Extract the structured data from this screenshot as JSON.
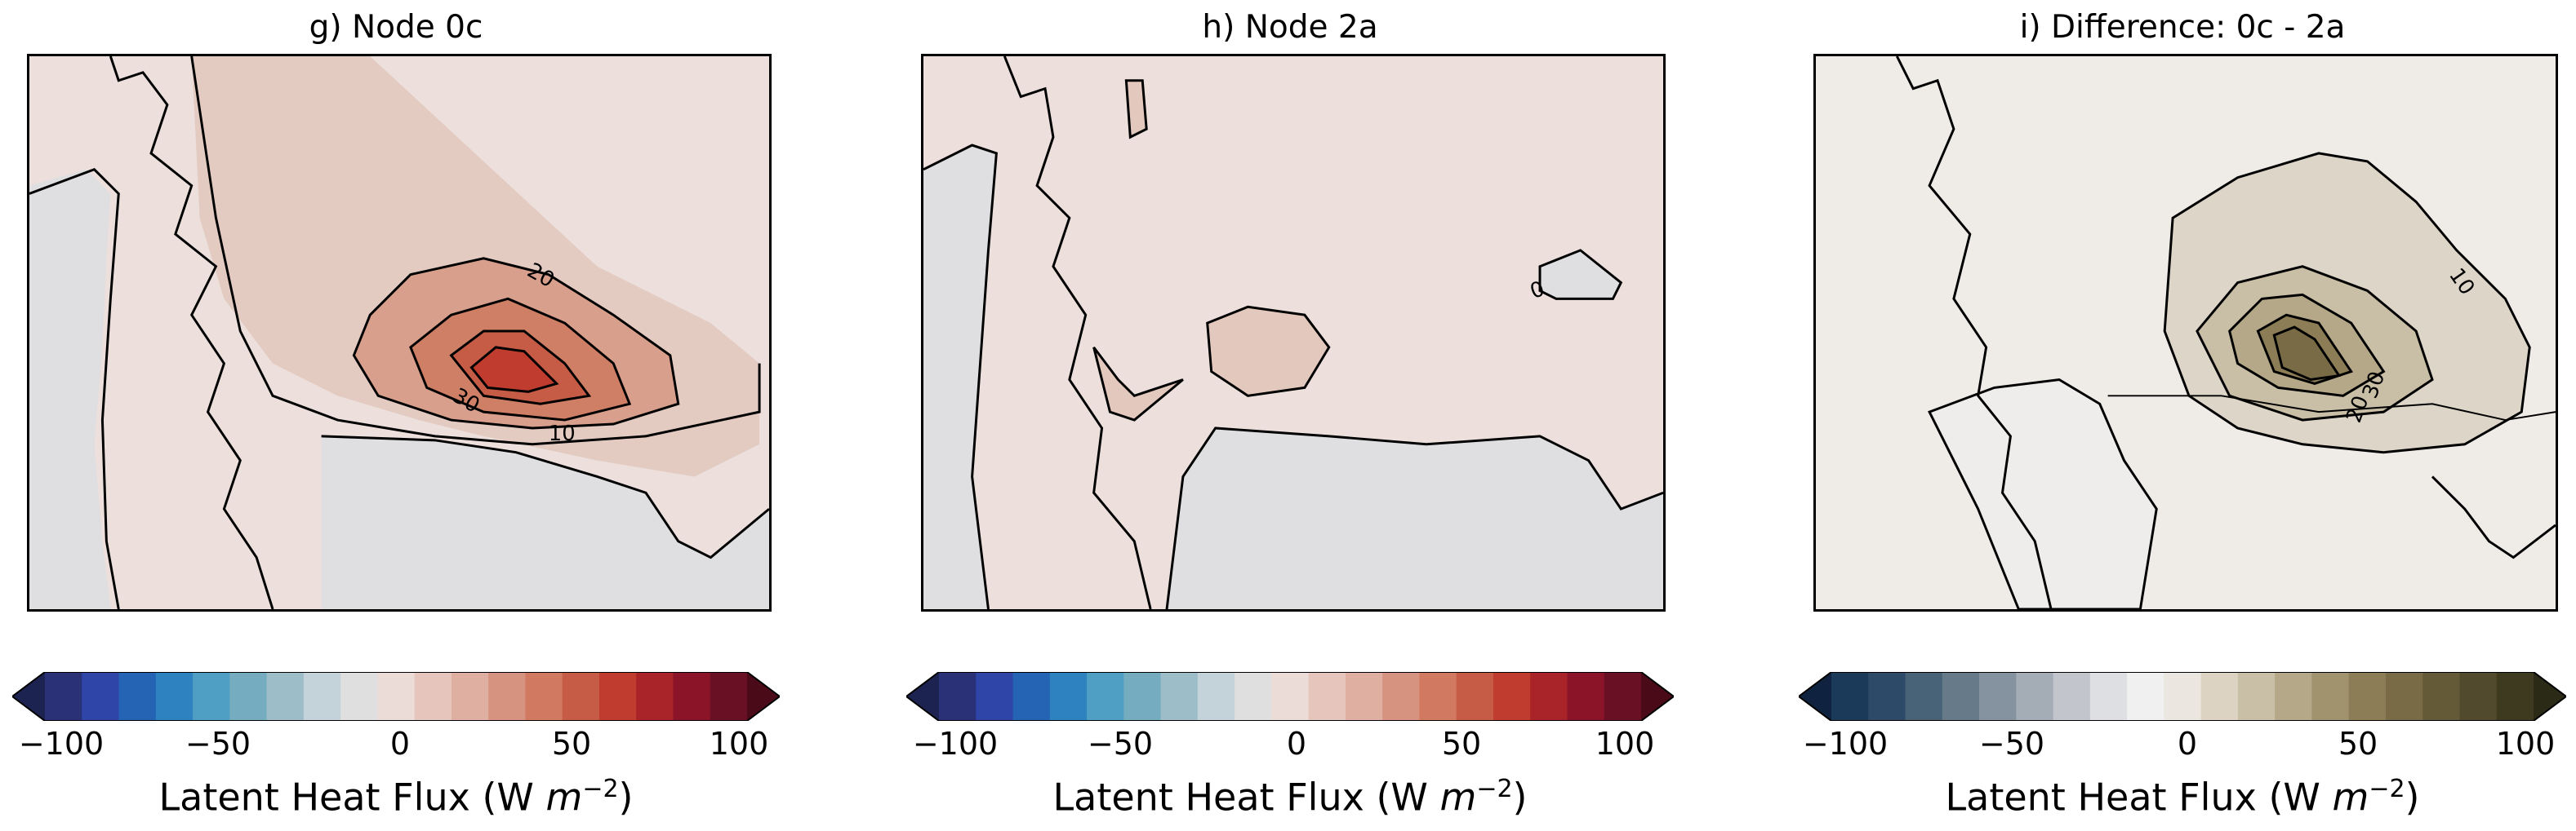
{
  "chart_data": [
    {
      "type": "heatmap",
      "title": "g) Node 0c",
      "colorbar": {
        "label_prefix": "Latent Heat Flux (W ",
        "label_unit": "m",
        "label_exp": "−2",
        "label_suffix": ")",
        "ticks": [
          "−100",
          "−50",
          "0",
          "50",
          "100"
        ],
        "range": [
          -100,
          100
        ],
        "extend": "both",
        "colors": [
          "#1c2350",
          "#2a3177",
          "#2f45a8",
          "#2563b5",
          "#2e82c0",
          "#4f9ec4",
          "#76acc0",
          "#9dbdc9",
          "#c4d3da",
          "#dfdfdf",
          "#ecdcd8",
          "#e6c6bc",
          "#dfb0a1",
          "#d69380",
          "#d27962",
          "#c65c46",
          "#bf3c2e",
          "#a82428",
          "#8b1429",
          "#6a1024",
          "#4a0a18"
        ]
      },
      "contour_labels": [
        "20",
        "30",
        "10"
      ],
      "contour_levels": [
        10,
        20,
        30,
        40,
        50
      ],
      "features": "Latent heat flux maximum (~50 W m-2) centred over the ice edge; weak positive flux over ice, near zero over land."
    },
    {
      "type": "heatmap",
      "title": "h) Node 2a",
      "colorbar": {
        "label_prefix": "Latent Heat Flux (W ",
        "label_unit": "m",
        "label_exp": "−2",
        "label_suffix": ")",
        "ticks": [
          "−100",
          "−50",
          "0",
          "50",
          "100"
        ],
        "range": [
          -100,
          100
        ],
        "extend": "both",
        "colors": [
          "#1c2350",
          "#2a3177",
          "#2f45a8",
          "#2563b5",
          "#2e82c0",
          "#4f9ec4",
          "#76acc0",
          "#9dbdc9",
          "#c4d3da",
          "#dfdfdf",
          "#ecdcd8",
          "#e6c6bc",
          "#dfb0a1",
          "#d69380",
          "#d27962",
          "#c65c46",
          "#bf3c2e",
          "#a82428",
          "#8b1429",
          "#6a1024",
          "#4a0a18"
        ]
      },
      "contour_labels": [
        "0"
      ],
      "contour_levels": [
        0,
        10
      ],
      "features": "Weak positive flux (~5-15 W m-2) everywhere; small patches above 10."
    },
    {
      "type": "heatmap",
      "title": "i) Difference: 0c - 2a",
      "colorbar": {
        "label_prefix": "Latent Heat Flux (W ",
        "label_unit": "m",
        "label_exp": "−2",
        "label_suffix": ")",
        "ticks": [
          "−100",
          "−50",
          "0",
          "50",
          "100"
        ],
        "range": [
          -100,
          100
        ],
        "extend": "both",
        "colors": [
          "#0f2340",
          "#1b3a5a",
          "#2d4b68",
          "#486378",
          "#667a8a",
          "#8593a0",
          "#a4acb5",
          "#c2c6cc",
          "#dddfe2",
          "#f0f0f0",
          "#ebe6df",
          "#dcd3c3",
          "#c9bea6",
          "#b5a888",
          "#a0936e",
          "#8c7d56",
          "#786b46",
          "#655a38",
          "#524a2c",
          "#3e3a20",
          "#2a2a16"
        ]
      },
      "contour_labels": [
        "10",
        "30",
        "20"
      ],
      "contour_levels": [
        10,
        20,
        30,
        40
      ],
      "features": "Positive difference maximum (~40 W m-2) near ice edge."
    }
  ]
}
